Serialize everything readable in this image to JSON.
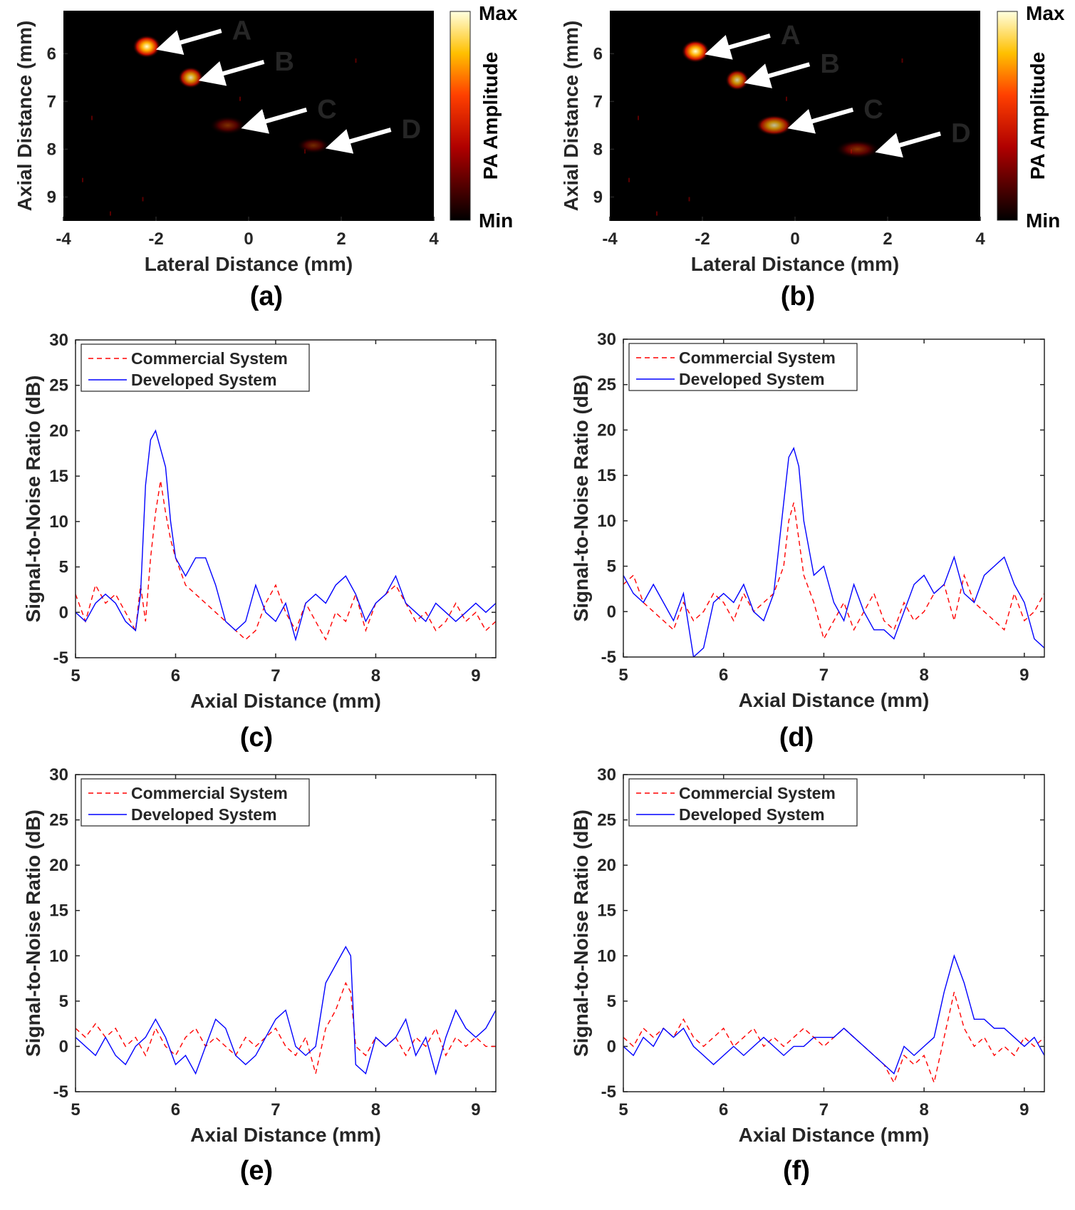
{
  "colors": {
    "commercial": "#ff0000",
    "developed": "#0000ff",
    "heatmap_bg": "#000000",
    "axis": "#262626"
  },
  "chart_data": [
    {
      "type": "heatmap",
      "panel_label": "(a)",
      "xlabel": "Lateral Distance (mm)",
      "ylabel": "Axial Distance (mm)",
      "xlim": [
        -4,
        4
      ],
      "ylim": [
        5.1,
        9.5
      ],
      "xticks": [
        -4,
        -2,
        0,
        2,
        4
      ],
      "yticks": [
        6,
        7,
        8,
        9
      ],
      "colorbar": {
        "label": "PA Amplitude",
        "max_label": "Max",
        "min_label": "Min"
      },
      "targets": [
        {
          "label": "A",
          "x": -2.2,
          "y": 5.85,
          "intensity": 1.0,
          "width": 0.3
        },
        {
          "label": "B",
          "x": -1.25,
          "y": 6.5,
          "intensity": 0.85,
          "width": 0.25
        },
        {
          "label": "C",
          "x": -0.45,
          "y": 7.5,
          "intensity": 0.5,
          "width": 0.45
        },
        {
          "label": "D",
          "x": 1.4,
          "y": 7.92,
          "intensity": 0.25,
          "width": 0.4
        }
      ]
    },
    {
      "type": "heatmap",
      "panel_label": "(b)",
      "xlabel": "Lateral Distance (mm)",
      "ylabel": "Axial Distance (mm)",
      "xlim": [
        -4,
        4
      ],
      "ylim": [
        5.1,
        9.5
      ],
      "xticks": [
        -4,
        -2,
        0,
        2,
        4
      ],
      "yticks": [
        6,
        7,
        8,
        9
      ],
      "colorbar": {
        "label": "PA Amplitude",
        "max_label": "Max",
        "min_label": "Min"
      },
      "targets": [
        {
          "label": "A",
          "x": -2.15,
          "y": 5.95,
          "intensity": 1.0,
          "width": 0.3
        },
        {
          "label": "B",
          "x": -1.25,
          "y": 6.55,
          "intensity": 0.8,
          "width": 0.22
        },
        {
          "label": "C",
          "x": -0.45,
          "y": 7.5,
          "intensity": 0.75,
          "width": 0.45
        },
        {
          "label": "D",
          "x": 1.35,
          "y": 8.0,
          "intensity": 0.55,
          "width": 0.6
        }
      ]
    },
    {
      "type": "line",
      "panel_label": "(c)",
      "xlabel": "Axial Distance (mm)",
      "ylabel": "Signal-to-Noise Ratio (dB)",
      "xlim": [
        5,
        9.2
      ],
      "ylim": [
        -5,
        30
      ],
      "xticks": [
        5,
        6,
        7,
        8,
        9
      ],
      "yticks": [
        -5,
        0,
        5,
        10,
        15,
        20,
        25,
        30
      ],
      "series": [
        {
          "name": "Commercial System",
          "style": "dashed",
          "x": [
            5.0,
            5.1,
            5.2,
            5.3,
            5.4,
            5.5,
            5.6,
            5.65,
            5.7,
            5.75,
            5.8,
            5.85,
            5.9,
            5.95,
            6.0,
            6.1,
            6.2,
            6.3,
            6.4,
            6.5,
            6.6,
            6.7,
            6.8,
            6.9,
            7.0,
            7.1,
            7.2,
            7.3,
            7.4,
            7.5,
            7.6,
            7.7,
            7.8,
            7.9,
            8.0,
            8.1,
            8.2,
            8.3,
            8.4,
            8.5,
            8.6,
            8.7,
            8.8,
            8.9,
            9.0,
            9.1,
            9.2
          ],
          "values": [
            2,
            -1,
            3,
            1,
            2,
            0,
            -2,
            3,
            -1,
            6,
            11,
            14.5,
            11,
            8,
            6,
            3,
            2,
            1,
            0,
            -1,
            -2,
            -3,
            -2,
            1,
            3,
            0,
            -2,
            1,
            -1,
            -3,
            0,
            -1,
            2,
            -2,
            1,
            2,
            3,
            1,
            -1,
            0,
            -2,
            -1,
            1,
            -1,
            0,
            -2,
            -1
          ]
        },
        {
          "name": "Developed System",
          "style": "solid",
          "x": [
            5.0,
            5.1,
            5.2,
            5.3,
            5.4,
            5.5,
            5.6,
            5.65,
            5.7,
            5.75,
            5.8,
            5.85,
            5.9,
            5.95,
            6.0,
            6.1,
            6.2,
            6.3,
            6.4,
            6.5,
            6.6,
            6.7,
            6.8,
            6.9,
            7.0,
            7.1,
            7.2,
            7.3,
            7.4,
            7.5,
            7.6,
            7.7,
            7.8,
            7.9,
            8.0,
            8.1,
            8.2,
            8.3,
            8.4,
            8.5,
            8.6,
            8.7,
            8.8,
            8.9,
            9.0,
            9.1,
            9.2
          ],
          "values": [
            0,
            -1,
            1,
            2,
            1,
            -1,
            -2,
            2,
            14,
            19,
            20,
            18,
            16,
            10,
            6,
            4,
            6,
            6,
            3,
            -1,
            -2,
            -1,
            3,
            0,
            -1,
            1,
            -3,
            1,
            2,
            1,
            3,
            4,
            2,
            -1,
            1,
            2,
            4,
            1,
            0,
            -1,
            1,
            0,
            -1,
            0,
            1,
            0,
            1
          ]
        }
      ],
      "legend": "top-left"
    },
    {
      "type": "line",
      "panel_label": "(d)",
      "xlabel": "Axial Distance (mm)",
      "ylabel": "Signal-to-Noise Ratio (dB)",
      "xlim": [
        5,
        9.2
      ],
      "ylim": [
        -5,
        30
      ],
      "xticks": [
        5,
        6,
        7,
        8,
        9
      ],
      "yticks": [
        -5,
        0,
        5,
        10,
        15,
        20,
        25,
        30
      ],
      "series": [
        {
          "name": "Commercial System",
          "style": "dashed",
          "x": [
            5.0,
            5.1,
            5.2,
            5.3,
            5.4,
            5.5,
            5.6,
            5.7,
            5.8,
            5.9,
            6.0,
            6.1,
            6.2,
            6.3,
            6.4,
            6.5,
            6.6,
            6.65,
            6.7,
            6.75,
            6.8,
            6.9,
            7.0,
            7.1,
            7.2,
            7.3,
            7.4,
            7.5,
            7.6,
            7.7,
            7.8,
            7.9,
            8.0,
            8.1,
            8.2,
            8.3,
            8.4,
            8.5,
            8.6,
            8.7,
            8.8,
            8.9,
            9.0,
            9.1,
            9.2
          ],
          "values": [
            3,
            4,
            1,
            0,
            -1,
            -2,
            1,
            -1,
            0,
            2,
            1,
            -1,
            2,
            0,
            1,
            2,
            5,
            10,
            12,
            8,
            4,
            1,
            -3,
            -1,
            1,
            -2,
            0,
            2,
            -1,
            -2,
            1,
            -1,
            0,
            2,
            3,
            -1,
            4,
            1,
            0,
            -1,
            -2,
            2,
            -1,
            0,
            2
          ]
        },
        {
          "name": "Developed System",
          "style": "solid",
          "x": [
            5.0,
            5.1,
            5.2,
            5.3,
            5.4,
            5.5,
            5.6,
            5.7,
            5.8,
            5.9,
            6.0,
            6.1,
            6.2,
            6.3,
            6.4,
            6.5,
            6.6,
            6.65,
            6.7,
            6.75,
            6.8,
            6.9,
            7.0,
            7.1,
            7.2,
            7.3,
            7.4,
            7.5,
            7.6,
            7.7,
            7.8,
            7.9,
            8.0,
            8.1,
            8.2,
            8.3,
            8.4,
            8.5,
            8.6,
            8.7,
            8.8,
            8.9,
            9.0,
            9.1,
            9.2
          ],
          "values": [
            4,
            2,
            1,
            3,
            1,
            -1,
            2,
            -5,
            -4,
            1,
            2,
            1,
            3,
            0,
            -1,
            2,
            12,
            17,
            18,
            16,
            10,
            4,
            5,
            1,
            -1,
            3,
            0,
            -2,
            -2,
            -3,
            0,
            3,
            4,
            2,
            3,
            6,
            2,
            1,
            4,
            5,
            6,
            3,
            1,
            -3,
            -4
          ]
        }
      ],
      "legend": "top-left"
    },
    {
      "type": "line",
      "panel_label": "(e)",
      "xlabel": "Axial Distance (mm)",
      "ylabel": "Signal-to-Noise Ratio (dB)",
      "xlim": [
        5,
        9.2
      ],
      "ylim": [
        -5,
        30
      ],
      "xticks": [
        5,
        6,
        7,
        8,
        9
      ],
      "yticks": [
        -5,
        0,
        5,
        10,
        15,
        20,
        25,
        30
      ],
      "series": [
        {
          "name": "Commercial System",
          "style": "dashed",
          "x": [
            5.0,
            5.1,
            5.2,
            5.3,
            5.4,
            5.5,
            5.6,
            5.7,
            5.8,
            5.9,
            6.0,
            6.1,
            6.2,
            6.3,
            6.4,
            6.5,
            6.6,
            6.7,
            6.8,
            6.9,
            7.0,
            7.1,
            7.2,
            7.3,
            7.4,
            7.5,
            7.6,
            7.7,
            7.75,
            7.8,
            7.9,
            8.0,
            8.1,
            8.2,
            8.3,
            8.4,
            8.5,
            8.6,
            8.7,
            8.8,
            8.9,
            9.0,
            9.1,
            9.2
          ],
          "values": [
            2,
            1,
            2.5,
            1,
            2,
            0,
            1,
            -1,
            2,
            0,
            -1,
            1,
            2,
            0,
            1,
            0,
            -1,
            1,
            0,
            1,
            2,
            0,
            -1,
            1,
            -3,
            2,
            4,
            7,
            6,
            0,
            -1,
            1,
            0,
            1,
            -1,
            1,
            0,
            2,
            -1,
            1,
            0,
            1,
            0,
            0
          ]
        },
        {
          "name": "Developed System",
          "style": "solid",
          "x": [
            5.0,
            5.1,
            5.2,
            5.3,
            5.4,
            5.5,
            5.6,
            5.7,
            5.8,
            5.9,
            6.0,
            6.1,
            6.2,
            6.3,
            6.4,
            6.5,
            6.6,
            6.7,
            6.8,
            6.9,
            7.0,
            7.1,
            7.2,
            7.3,
            7.4,
            7.5,
            7.6,
            7.7,
            7.75,
            7.8,
            7.9,
            8.0,
            8.1,
            8.2,
            8.3,
            8.4,
            8.5,
            8.6,
            8.7,
            8.8,
            8.9,
            9.0,
            9.1,
            9.2
          ],
          "values": [
            1,
            0,
            -1,
            1,
            -1,
            -2,
            0,
            1,
            3,
            1,
            -2,
            -1,
            -3,
            0,
            3,
            2,
            -1,
            -2,
            -1,
            1,
            3,
            4,
            0,
            -1,
            0,
            7,
            9,
            11,
            10,
            -2,
            -3,
            1,
            0,
            1,
            3,
            -1,
            1,
            -3,
            1,
            4,
            2,
            1,
            2,
            4
          ]
        }
      ],
      "legend": "top-left"
    },
    {
      "type": "line",
      "panel_label": "(f)",
      "xlabel": "Axial Distance (mm)",
      "ylabel": "Signal-to-Noise Ratio (dB)",
      "xlim": [
        5,
        9.2
      ],
      "ylim": [
        -5,
        30
      ],
      "xticks": [
        5,
        6,
        7,
        8,
        9
      ],
      "yticks": [
        -5,
        0,
        5,
        10,
        15,
        20,
        25,
        30
      ],
      "series": [
        {
          "name": "Commercial System",
          "style": "dashed",
          "x": [
            5.0,
            5.1,
            5.2,
            5.3,
            5.4,
            5.5,
            5.6,
            5.7,
            5.8,
            5.9,
            6.0,
            6.1,
            6.2,
            6.3,
            6.4,
            6.5,
            6.6,
            6.7,
            6.8,
            6.9,
            7.0,
            7.1,
            7.2,
            7.3,
            7.4,
            7.5,
            7.6,
            7.7,
            7.8,
            7.9,
            8.0,
            8.1,
            8.2,
            8.3,
            8.4,
            8.5,
            8.6,
            8.7,
            8.8,
            8.9,
            9.0,
            9.1,
            9.2
          ],
          "values": [
            1,
            0,
            2,
            1,
            2,
            1,
            3,
            1,
            0,
            1,
            2,
            0,
            1,
            2,
            0,
            1,
            0,
            1,
            2,
            1,
            0,
            1,
            2,
            1,
            0,
            -1,
            -2,
            -4,
            -1,
            -2,
            -1,
            -4,
            1,
            6,
            2,
            0,
            1,
            -1,
            0,
            -1,
            1,
            0,
            1
          ]
        },
        {
          "name": "Developed System",
          "style": "solid",
          "x": [
            5.0,
            5.1,
            5.2,
            5.3,
            5.4,
            5.5,
            5.6,
            5.7,
            5.8,
            5.9,
            6.0,
            6.1,
            6.2,
            6.3,
            6.4,
            6.5,
            6.6,
            6.7,
            6.8,
            6.9,
            7.0,
            7.1,
            7.2,
            7.3,
            7.4,
            7.5,
            7.6,
            7.7,
            7.8,
            7.9,
            8.0,
            8.1,
            8.2,
            8.3,
            8.4,
            8.5,
            8.6,
            8.7,
            8.8,
            8.9,
            9.0,
            9.1,
            9.2
          ],
          "values": [
            0,
            -1,
            1,
            0,
            2,
            1,
            2,
            0,
            -1,
            -2,
            -1,
            0,
            -1,
            0,
            1,
            0,
            -1,
            0,
            0,
            1,
            1,
            1,
            2,
            1,
            0,
            -1,
            -2,
            -3,
            0,
            -1,
            0,
            1,
            6,
            10,
            7,
            3,
            3,
            2,
            2,
            1,
            0,
            1,
            -1
          ]
        }
      ],
      "legend": "top-left"
    }
  ]
}
